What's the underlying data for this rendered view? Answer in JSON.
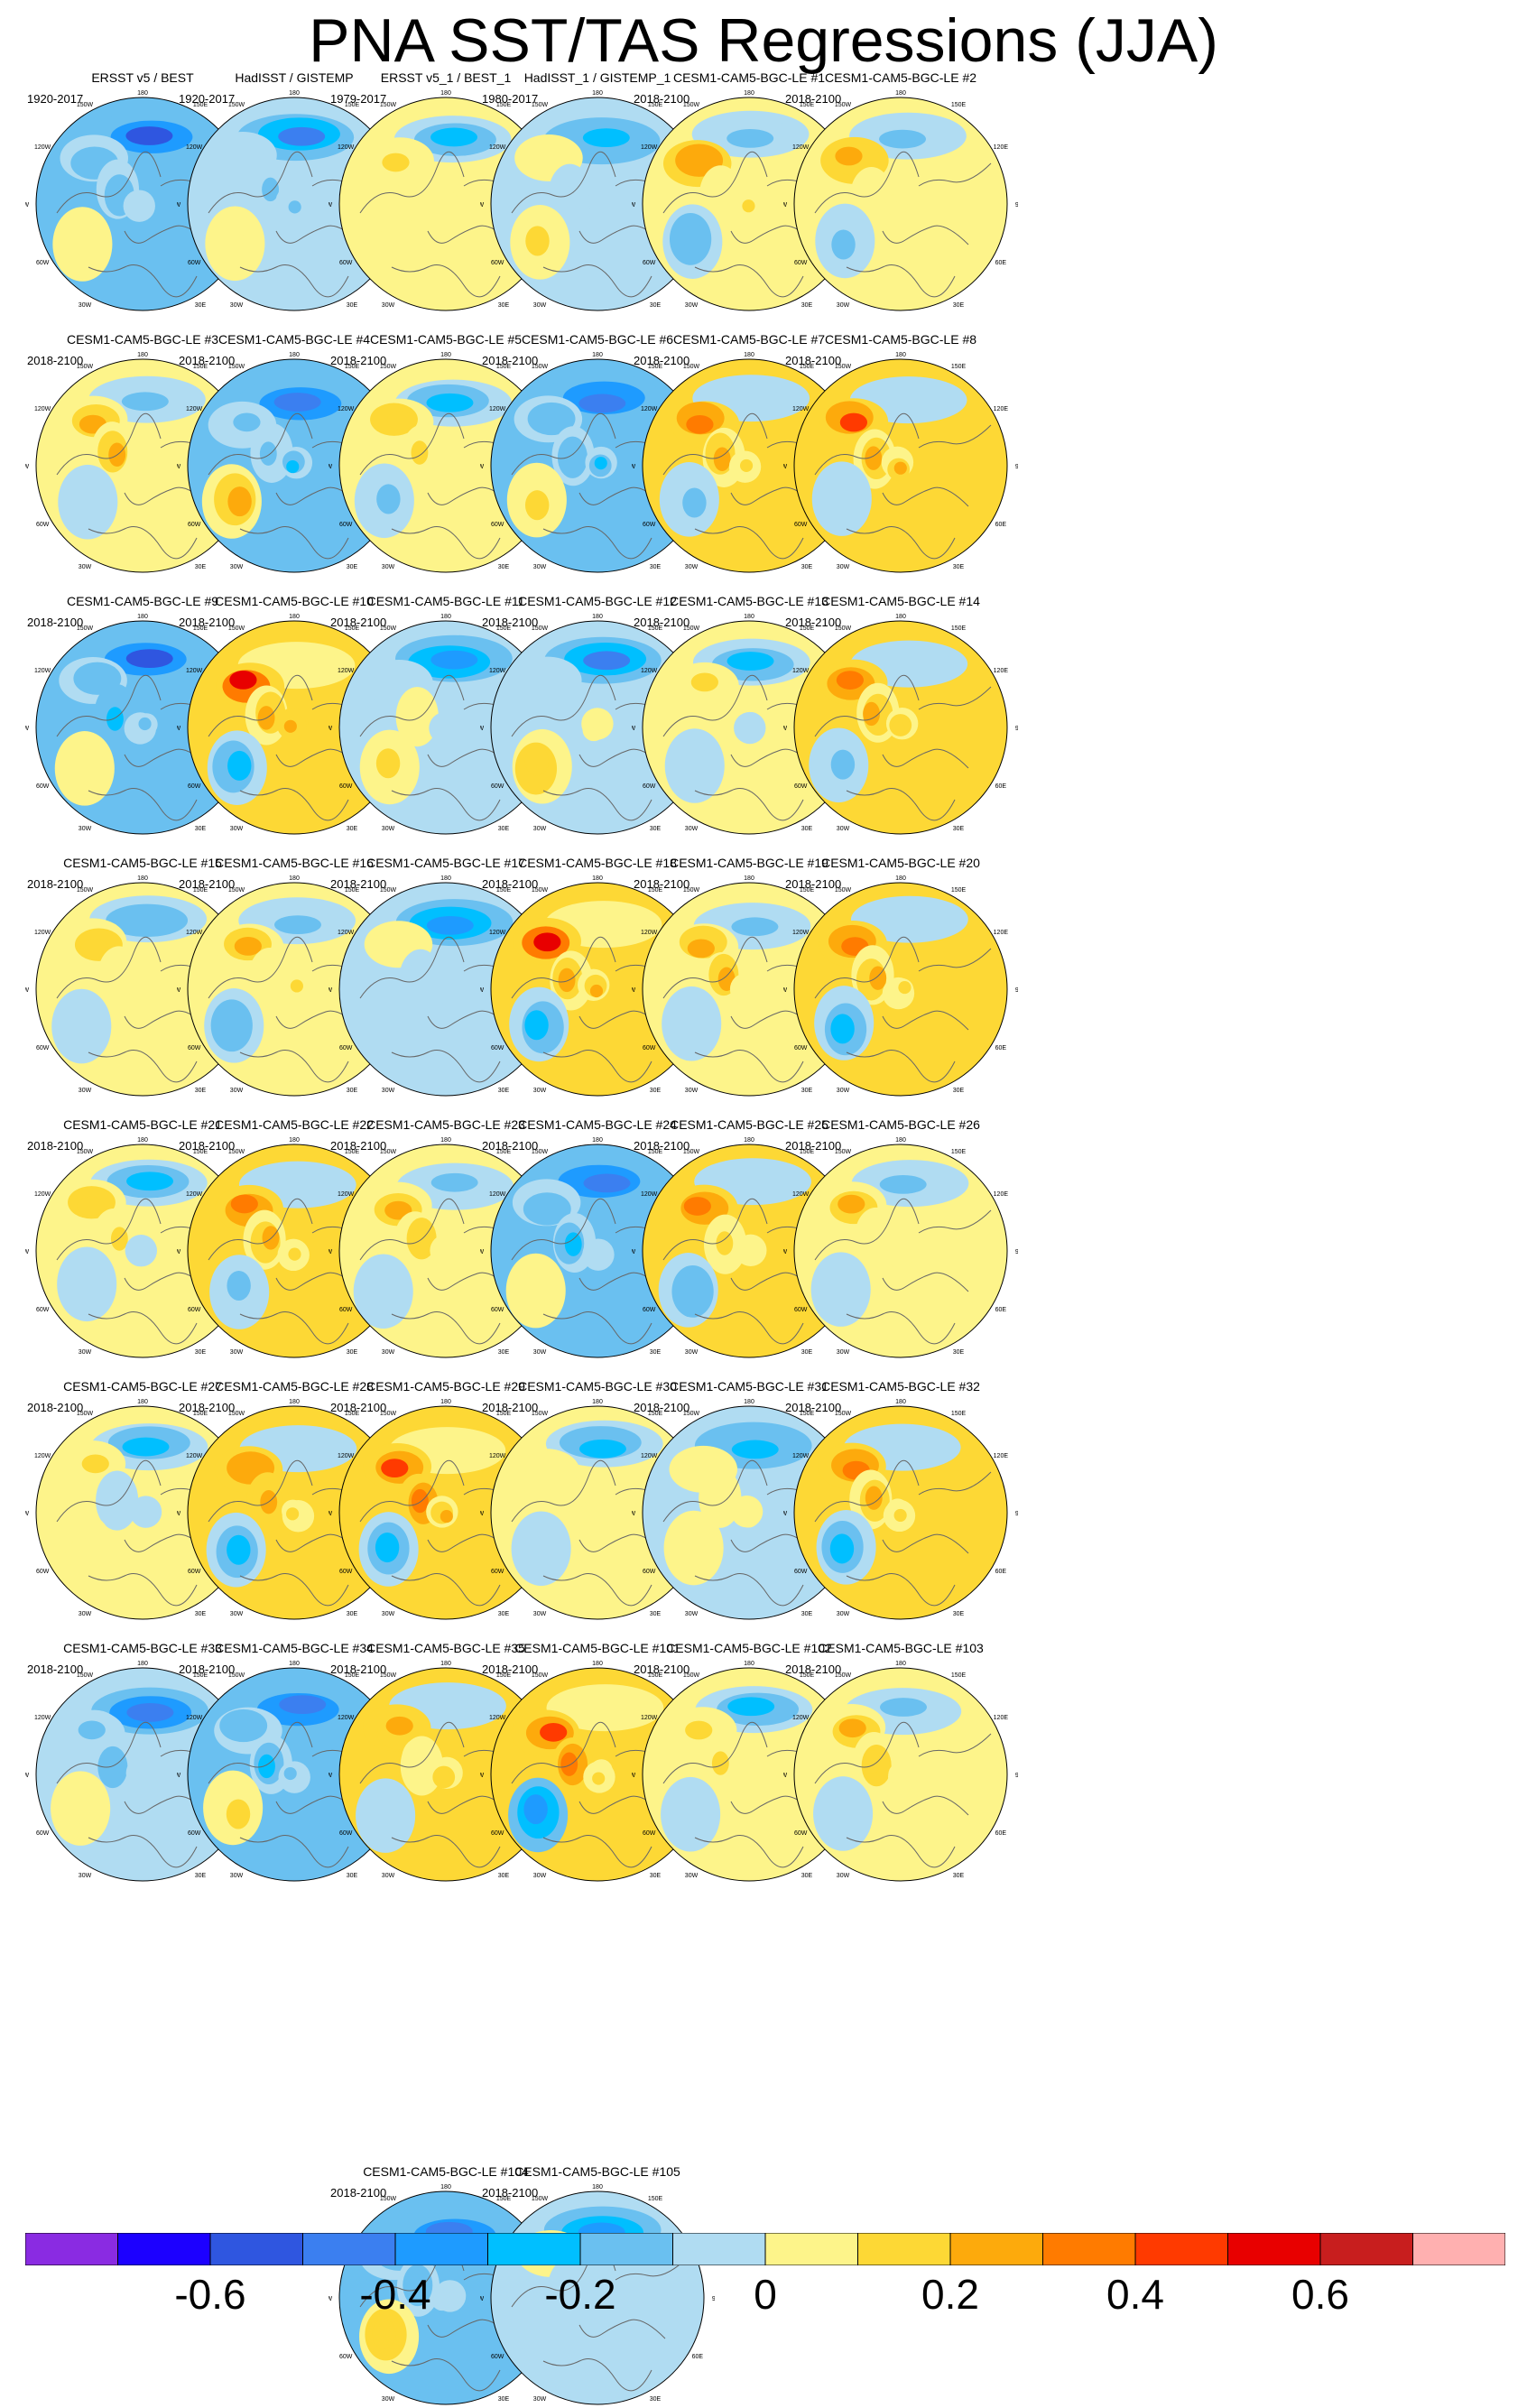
{
  "title": "PNA SST/TAS Regressions (JJA)",
  "map_labels": [
    "180",
    "150E",
    "120E",
    "90E",
    "60E",
    "30E",
    "0",
    "30W",
    "60W",
    "90W",
    "120W",
    "150W"
  ],
  "panels": [
    {
      "title": "ERSST v5 / BEST",
      "years": "1920-2017",
      "pattern": -0.35
    },
    {
      "title": "HadISST / GISTEMP",
      "years": "1920-2017",
      "pattern": -0.2
    },
    {
      "title": "ERSST v5_1 / BEST_1",
      "years": "1979-2017",
      "pattern": 0.05
    },
    {
      "title": "HadISST_1 / GISTEMP_1",
      "years": "1980-2017",
      "pattern": 0.0
    },
    {
      "title": "CESM1-CAM5-BGC-LE #1",
      "years": "2018-2100",
      "pattern": 0.25
    },
    {
      "title": "CESM1-CAM5-BGC-LE #2",
      "years": "2018-2100",
      "pattern": 0.25
    },
    {
      "title": "CESM1-CAM5-BGC-LE #3",
      "years": "2018-2100",
      "pattern": 0.2
    },
    {
      "title": "CESM1-CAM5-BGC-LE #4",
      "years": "2018-2100",
      "pattern": -0.3
    },
    {
      "title": "CESM1-CAM5-BGC-LE #5",
      "years": "2018-2100",
      "pattern": 0.1
    },
    {
      "title": "CESM1-CAM5-BGC-LE #6",
      "years": "2018-2100",
      "pattern": -0.3
    },
    {
      "title": "CESM1-CAM5-BGC-LE #7",
      "years": "2018-2100",
      "pattern": 0.35
    },
    {
      "title": "CESM1-CAM5-BGC-LE #8",
      "years": "2018-2100",
      "pattern": 0.4
    },
    {
      "title": "CESM1-CAM5-BGC-LE #9",
      "years": "2018-2100",
      "pattern": -0.35
    },
    {
      "title": "CESM1-CAM5-BGC-LE #10",
      "years": "2018-2100",
      "pattern": 0.55
    },
    {
      "title": "CESM1-CAM5-BGC-LE #11",
      "years": "2018-2100",
      "pattern": -0.15
    },
    {
      "title": "CESM1-CAM5-BGC-LE #12",
      "years": "2018-2100",
      "pattern": -0.2
    },
    {
      "title": "CESM1-CAM5-BGC-LE #13",
      "years": "2018-2100",
      "pattern": 0.05
    },
    {
      "title": "CESM1-CAM5-BGC-LE #14",
      "years": "2018-2100",
      "pattern": 0.3
    },
    {
      "title": "CESM1-CAM5-BGC-LE #15",
      "years": "2018-2100",
      "pattern": 0.15
    },
    {
      "title": "CESM1-CAM5-BGC-LE #16",
      "years": "2018-2100",
      "pattern": 0.2
    },
    {
      "title": "CESM1-CAM5-BGC-LE #17",
      "years": "2018-2100",
      "pattern": -0.05
    },
    {
      "title": "CESM1-CAM5-BGC-LE #18",
      "years": "2018-2100",
      "pattern": 0.55
    },
    {
      "title": "CESM1-CAM5-BGC-LE #19",
      "years": "2018-2100",
      "pattern": 0.25
    },
    {
      "title": "CESM1-CAM5-BGC-LE #20",
      "years": "2018-2100",
      "pattern": 0.3
    },
    {
      "title": "CESM1-CAM5-BGC-LE #21",
      "years": "2018-2100",
      "pattern": 0.1
    },
    {
      "title": "CESM1-CAM5-BGC-LE #22",
      "years": "2018-2100",
      "pattern": 0.3
    },
    {
      "title": "CESM1-CAM5-BGC-LE #23",
      "years": "2018-2100",
      "pattern": 0.25
    },
    {
      "title": "CESM1-CAM5-BGC-LE #24",
      "years": "2018-2100",
      "pattern": -0.3
    },
    {
      "title": "CESM1-CAM5-BGC-LE #25",
      "years": "2018-2100",
      "pattern": 0.3
    },
    {
      "title": "CESM1-CAM5-BGC-LE #26",
      "years": "2018-2100",
      "pattern": 0.2
    },
    {
      "title": "CESM1-CAM5-BGC-LE #27",
      "years": "2018-2100",
      "pattern": 0.1
    },
    {
      "title": "CESM1-CAM5-BGC-LE #28",
      "years": "2018-2100",
      "pattern": 0.3
    },
    {
      "title": "CESM1-CAM5-BGC-LE #29",
      "years": "2018-2100",
      "pattern": 0.45
    },
    {
      "title": "CESM1-CAM5-BGC-LE #30",
      "years": "2018-2100",
      "pattern": 0.05
    },
    {
      "title": "CESM1-CAM5-BGC-LE #31",
      "years": "2018-2100",
      "pattern": 0.0
    },
    {
      "title": "CESM1-CAM5-BGC-LE #32",
      "years": "2018-2100",
      "pattern": 0.35
    },
    {
      "title": "CESM1-CAM5-BGC-LE #33",
      "years": "2018-2100",
      "pattern": -0.25
    },
    {
      "title": "CESM1-CAM5-BGC-LE #34",
      "years": "2018-2100",
      "pattern": -0.3
    },
    {
      "title": "CESM1-CAM5-BGC-LE #35",
      "years": "2018-2100",
      "pattern": 0.3
    },
    {
      "title": "CESM1-CAM5-BGC-LE #101",
      "years": "2018-2100",
      "pattern": 0.45
    },
    {
      "title": "CESM1-CAM5-BGC-LE #102",
      "years": "2018-2100",
      "pattern": 0.1
    },
    {
      "title": "CESM1-CAM5-BGC-LE #103",
      "years": "2018-2100",
      "pattern": 0.2
    },
    {
      "title": "CESM1-CAM5-BGC-LE #104",
      "years": "2018-2100",
      "pattern": -0.3
    },
    {
      "title": "CESM1-CAM5-BGC-LE #105",
      "years": "2018-2100",
      "pattern": -0.05
    }
  ],
  "colorbar": {
    "colors": [
      "#8a2be2",
      "#1c00ff",
      "#2f56e0",
      "#3b7ff0",
      "#1e9bff",
      "#00bfff",
      "#6ac0f0",
      "#b0dcf2",
      "#fdf48a",
      "#fdd835",
      "#fdaa0c",
      "#ff7b00",
      "#ff3a00",
      "#e80000",
      "#c81e1e",
      "#ffb0b0"
    ],
    "labels": [
      "-0.6",
      "-0.4",
      "-0.2",
      "0",
      "0.2",
      "0.4",
      "0.6"
    ]
  }
}
